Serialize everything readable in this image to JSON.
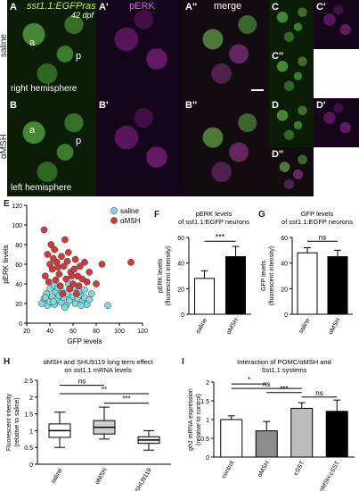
{
  "micrographs": {
    "titles": {
      "green": "sst1.1:EGFPras",
      "age": "42 dpf",
      "magenta": "pERK",
      "merge": "merge"
    },
    "row_labels": {
      "top": "saline",
      "bottom": "αMSH"
    },
    "hemispheres": {
      "top": "right hemisphere",
      "bottom": "left hemisphere"
    },
    "letters": {
      "A": "A",
      "A1": "A'",
      "A2": "A''",
      "B": "B",
      "B1": "B'",
      "B2": "B''",
      "C": "C",
      "C1": "C'",
      "C2": "C''",
      "D": "D",
      "D1": "D'",
      "D2": "D''"
    },
    "region_marks": {
      "a": "a",
      "p": "p"
    }
  },
  "panel_letters": {
    "E": "E",
    "F": "F",
    "G": "G",
    "H": "H",
    "I": "I"
  },
  "chart_data": [
    {
      "id": "E",
      "type": "scatter",
      "xlabel": "GFP levels",
      "ylabel": "pERK levels",
      "xlim": [
        20,
        120
      ],
      "ylim": [
        0,
        120
      ],
      "xticks": [
        20,
        40,
        60,
        80,
        100,
        120
      ],
      "yticks": [
        0,
        20,
        40,
        60,
        80,
        100,
        120
      ],
      "series": [
        {
          "name": "saline",
          "color": "#7fd9de",
          "points": [
            [
              33,
              20
            ],
            [
              35,
              25
            ],
            [
              37,
              30
            ],
            [
              38,
              18
            ],
            [
              40,
              22
            ],
            [
              42,
              27
            ],
            [
              44,
              19
            ],
            [
              45,
              32
            ],
            [
              46,
              24
            ],
            [
              48,
              28
            ],
            [
              50,
              21
            ],
            [
              52,
              26
            ],
            [
              54,
              18
            ],
            [
              55,
              30
            ],
            [
              57,
              23
            ],
            [
              58,
              35
            ],
            [
              60,
              27
            ],
            [
              62,
              20
            ],
            [
              64,
              25
            ],
            [
              66,
              29
            ],
            [
              68,
              22
            ],
            [
              70,
              26
            ],
            [
              72,
              19
            ],
            [
              74,
              24
            ],
            [
              40,
              35
            ],
            [
              44,
              38
            ],
            [
              50,
              33
            ],
            [
              56,
              40
            ],
            [
              60,
              36
            ],
            [
              65,
              32
            ],
            [
              70,
              34
            ],
            [
              53,
              16
            ],
            [
              47,
              36
            ],
            [
              76,
              30
            ],
            [
              90,
              18
            ],
            [
              36,
              26
            ],
            [
              43,
              22
            ],
            [
              67,
              18
            ]
          ]
        },
        {
          "name": "αMSH",
          "color": "#d23a3a",
          "points": [
            [
              35,
              95
            ],
            [
              38,
              70
            ],
            [
              40,
              60
            ],
            [
              42,
              55
            ],
            [
              44,
              75
            ],
            [
              46,
              62
            ],
            [
              48,
              50
            ],
            [
              50,
              68
            ],
            [
              52,
              58
            ],
            [
              54,
              45
            ],
            [
              56,
              72
            ],
            [
              58,
              52
            ],
            [
              60,
              40
            ],
            [
              62,
              65
            ],
            [
              64,
              48
            ],
            [
              66,
              58
            ],
            [
              70,
              62
            ],
            [
              72,
              42
            ],
            [
              36,
              48
            ],
            [
              41,
              80
            ],
            [
              45,
              44
            ],
            [
              49,
              38
            ],
            [
              53,
              85
            ],
            [
              57,
              35
            ],
            [
              61,
              55
            ],
            [
              65,
              38
            ],
            [
              68,
              45
            ],
            [
              74,
              52
            ],
            [
              55,
              63
            ],
            [
              47,
              57
            ],
            [
              39,
              42
            ],
            [
              43,
              66
            ],
            [
              59,
              48
            ],
            [
              63,
              30
            ],
            [
              51,
              30
            ],
            [
              85,
              60
            ],
            [
              110,
              62
            ],
            [
              80,
              40
            ]
          ]
        }
      ]
    },
    {
      "id": "F",
      "type": "bar",
      "title": "pERK levels of sst1.1:EGFP neurons",
      "ylabel": "pERK levels (fluorescent intensity)",
      "categories": [
        "saline",
        "αMSH"
      ],
      "values": [
        28,
        45
      ],
      "errors": [
        6,
        8
      ],
      "colors": [
        "#ffffff",
        "#000000"
      ],
      "ylim": [
        0,
        60
      ],
      "yticks": [
        0,
        20,
        40,
        60
      ],
      "significance": "***"
    },
    {
      "id": "G",
      "type": "bar",
      "title": "GFP levels of sst1.1:EGFP neurons",
      "ylabel": "GFP levels (fluorescent intensity)",
      "categories": [
        "saline",
        "αMSH"
      ],
      "values": [
        48,
        45
      ],
      "errors": [
        4,
        5
      ],
      "colors": [
        "#ffffff",
        "#000000"
      ],
      "ylim": [
        0,
        60
      ],
      "yticks": [
        0,
        20,
        40,
        60
      ],
      "significance": "ns"
    },
    {
      "id": "H",
      "type": "box",
      "title": "αMSH and SHU9119 long term effect on sst1.1 mRNA levels",
      "ylabel": "Fluorescent intensity (relative to saline)",
      "categories": [
        "saline",
        "αMSH",
        "SHU9119"
      ],
      "boxes": [
        {
          "min": 0.5,
          "q1": 0.8,
          "median": 1.0,
          "q3": 1.2,
          "max": 1.55
        },
        {
          "min": 0.75,
          "q1": 0.9,
          "median": 1.1,
          "q3": 1.3,
          "max": 1.7
        },
        {
          "min": 0.42,
          "q1": 0.62,
          "median": 0.72,
          "q3": 0.82,
          "max": 1.0
        }
      ],
      "ylim": [
        0,
        2.5
      ],
      "yticks": [
        0,
        0.5,
        1.0,
        1.5,
        2.0,
        2.5
      ],
      "comparisons": [
        {
          "pair": [
            "saline",
            "αMSH"
          ],
          "label": "ns"
        },
        {
          "pair": [
            "saline",
            "SHU9119"
          ],
          "label": "**"
        },
        {
          "pair": [
            "αMSH",
            "SHU9119"
          ],
          "label": "***"
        }
      ]
    },
    {
      "id": "I",
      "type": "bar",
      "title": "Interaction of POMC/αMSH and Sst1.1 systems",
      "ylabel": "gh1 mRNA expression (relative to control)",
      "ylabel_italic": "gh1",
      "ylabel_rest": " mRNA expression (relative to control)",
      "categories": [
        "control",
        "αMSH",
        "cSST",
        "αMSH:cSST"
      ],
      "values": [
        1.0,
        0.7,
        1.3,
        1.22
      ],
      "errors": [
        0.1,
        0.25,
        0.15,
        0.3
      ],
      "colors": [
        "#ffffff",
        "#8c8c8c",
        "#bcbcbc",
        "#000000"
      ],
      "ylim": [
        0,
        2.0
      ],
      "yticks": [
        0,
        0.5,
        1.0,
        1.5,
        2.0
      ],
      "comparisons": [
        {
          "pair": [
            "control",
            "αMSH"
          ],
          "label": "*"
        },
        {
          "pair": [
            "control",
            "cSST"
          ],
          "label": "ns"
        },
        {
          "pair": [
            "αMSH",
            "cSST"
          ],
          "label": "***"
        },
        {
          "pair": [
            "cSST",
            "αMSH:cSST"
          ],
          "label": "ns"
        }
      ]
    }
  ]
}
